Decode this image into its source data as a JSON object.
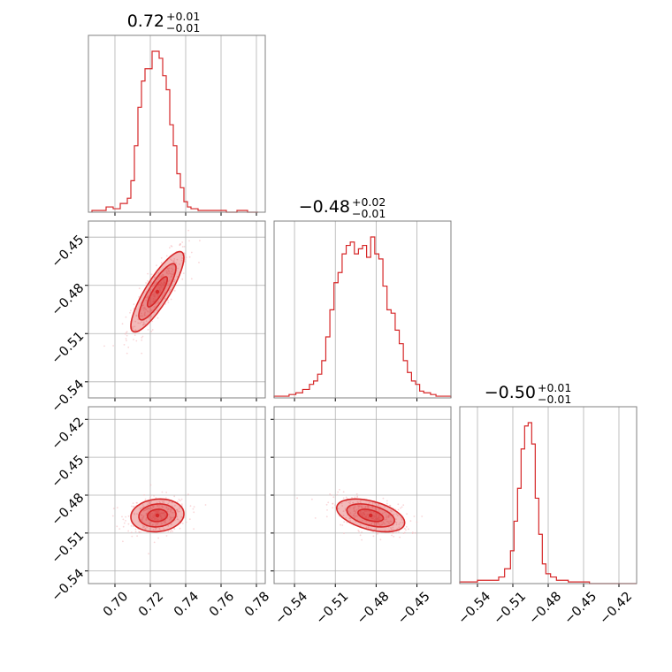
{
  "chart_data": [
    {
      "type": "histogram",
      "panel": "diag-0",
      "title": {
        "value": "0.72",
        "upper": "+0.01",
        "lower": "−0.01"
      },
      "xlim": [
        0.685,
        0.785
      ],
      "bins": [
        0.687,
        0.691,
        0.695,
        0.699,
        0.703,
        0.707,
        0.709,
        0.711,
        0.713,
        0.715,
        0.717,
        0.719,
        0.721,
        0.723,
        0.725,
        0.727,
        0.729,
        0.731,
        0.733,
        0.735,
        0.737,
        0.739,
        0.741,
        0.743,
        0.747,
        0.751,
        0.757,
        0.763,
        0.769,
        0.775,
        0.781
      ],
      "counts": [
        1,
        1,
        3,
        2,
        5,
        8,
        18,
        38,
        60,
        75,
        82,
        82,
        92,
        92,
        88,
        78,
        70,
        50,
        38,
        22,
        14,
        6,
        3,
        2,
        1,
        1,
        1,
        0,
        1,
        0
      ],
      "color": "#d62728"
    },
    {
      "type": "histogram",
      "panel": "diag-1",
      "title": {
        "value": "−0.48",
        "upper": "+0.02",
        "lower": "−0.01"
      },
      "xlim": [
        -0.555,
        -0.425
      ],
      "bins": [
        -0.555,
        -0.544,
        -0.539,
        -0.534,
        -0.529,
        -0.526,
        -0.523,
        -0.52,
        -0.517,
        -0.514,
        -0.511,
        -0.508,
        -0.505,
        -0.502,
        -0.499,
        -0.496,
        -0.493,
        -0.49,
        -0.487,
        -0.484,
        -0.481,
        -0.478,
        -0.475,
        -0.472,
        -0.469,
        -0.466,
        -0.463,
        -0.46,
        -0.457,
        -0.454,
        -0.451,
        -0.448,
        -0.445,
        -0.44,
        -0.436,
        -0.432,
        -0.425
      ],
      "counts": [
        1,
        2,
        3,
        5,
        8,
        10,
        14,
        22,
        36,
        52,
        68,
        74,
        85,
        90,
        92,
        85,
        88,
        90,
        83,
        95,
        85,
        82,
        66,
        52,
        50,
        40,
        32,
        22,
        15,
        10,
        8,
        4,
        3,
        2,
        1,
        1
      ],
      "color": "#d62728"
    },
    {
      "type": "histogram",
      "panel": "diag-2",
      "title": {
        "value": "−0.50",
        "upper": "+0.01",
        "lower": "−0.01"
      },
      "xlim": [
        -0.555,
        -0.405
      ],
      "bins": [
        -0.555,
        -0.54,
        -0.53,
        -0.522,
        -0.517,
        -0.512,
        -0.509,
        -0.506,
        -0.503,
        -0.5,
        -0.497,
        -0.494,
        -0.491,
        -0.488,
        -0.485,
        -0.482,
        -0.478,
        -0.473,
        -0.468,
        -0.463,
        -0.455,
        -0.445,
        -0.405
      ],
      "counts": [
        1,
        2,
        2,
        4,
        9,
        20,
        38,
        58,
        82,
        96,
        98,
        85,
        52,
        30,
        12,
        6,
        4,
        2,
        2,
        1,
        1,
        0
      ],
      "color": "#d62728"
    },
    {
      "type": "scatter-contour",
      "panel": "p-1-0",
      "x_var": 0,
      "y_var": 1,
      "xlim": [
        0.685,
        0.785
      ],
      "ylim": [
        -0.55,
        -0.44
      ],
      "mean": [
        0.724,
        -0.484
      ],
      "sigma": [
        0.0075,
        0.0125
      ],
      "rho": 0.85,
      "color": "#d62728"
    },
    {
      "type": "scatter-contour",
      "panel": "p-2-0",
      "x_var": 0,
      "y_var": 2,
      "xlim": [
        0.685,
        0.785
      ],
      "ylim": [
        -0.55,
        -0.41
      ],
      "mean": [
        0.724,
        -0.496
      ],
      "sigma": [
        0.0075,
        0.0065
      ],
      "rho": 0.1,
      "color": "#d62728"
    },
    {
      "type": "scatter-contour",
      "panel": "p-2-1",
      "x_var": 1,
      "y_var": 2,
      "xlim": [
        -0.555,
        -0.425
      ],
      "ylim": [
        -0.55,
        -0.41
      ],
      "mean": [
        -0.484,
        -0.496
      ],
      "sigma": [
        0.0125,
        0.0065
      ],
      "rho": -0.45,
      "color": "#d62728"
    }
  ],
  "axes": {
    "x0": {
      "ticks": [
        0.7,
        0.72,
        0.74,
        0.76,
        0.78
      ],
      "labels": [
        "0.70",
        "0.72",
        "0.74",
        "0.76",
        "0.78"
      ]
    },
    "x1": {
      "ticks": [
        -0.54,
        -0.51,
        -0.48,
        -0.45
      ],
      "labels": [
        "−0.54",
        "−0.51",
        "−0.48",
        "−0.45"
      ]
    },
    "x2": {
      "ticks": [
        -0.54,
        -0.51,
        -0.48,
        -0.45,
        -0.42
      ],
      "labels": [
        "−0.54",
        "−0.51",
        "−0.48",
        "−0.45",
        "−0.42"
      ]
    },
    "y1": {
      "ticks": [
        -0.45,
        -0.48,
        -0.51,
        -0.54
      ],
      "labels": [
        "−0.45",
        "−0.48",
        "−0.51",
        "−0.54"
      ]
    },
    "y2": {
      "ticks": [
        -0.42,
        -0.45,
        -0.48,
        -0.51,
        -0.54
      ],
      "labels": [
        "−0.42",
        "−0.45",
        "−0.48",
        "−0.51",
        "−0.54"
      ]
    }
  },
  "style": {
    "line_color": "#d62728",
    "fill_color": "#f0a3a7",
    "grid_color": "#b0b0b0",
    "frame_color": "#808080"
  }
}
